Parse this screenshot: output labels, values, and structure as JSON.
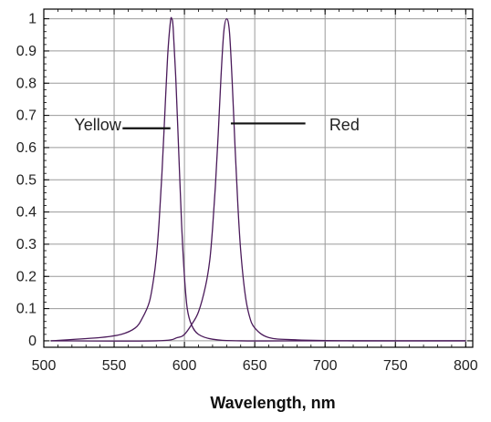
{
  "chart_data": {
    "type": "line",
    "xlabel": "Wavelength, nm",
    "ylabel": "",
    "xlim": [
      500,
      805
    ],
    "ylim": [
      -0.02,
      1.03
    ],
    "x_ticks": [
      500,
      550,
      600,
      650,
      700,
      750,
      800
    ],
    "y_ticks": [
      0,
      0.1,
      0.2,
      0.3,
      0.4,
      0.5,
      0.6,
      0.7,
      0.8,
      0.9,
      1
    ],
    "x_tick_labels": [
      "500",
      "550",
      "600",
      "650",
      "700",
      "750",
      "800"
    ],
    "y_tick_labels": [
      "0",
      "0.1",
      "0.2",
      "0.3",
      "0.4",
      "0.5",
      "0.6",
      "0.7",
      "0.8",
      "0.9",
      "1"
    ],
    "grid": true,
    "line_color": "#4a1a5a",
    "series": [
      {
        "name": "Yellow",
        "x": [
          505,
          540,
          555,
          565,
          570,
          575,
          578,
          580,
          582,
          584,
          586,
          588,
          590,
          591,
          592,
          594,
          596,
          598,
          600,
          602,
          605,
          610,
          620,
          640,
          700,
          800
        ],
        "y": [
          0.0,
          0.01,
          0.02,
          0.04,
          0.07,
          0.12,
          0.19,
          0.26,
          0.37,
          0.52,
          0.7,
          0.88,
          0.99,
          1.0,
          0.97,
          0.8,
          0.58,
          0.36,
          0.2,
          0.1,
          0.05,
          0.02,
          0.005,
          0.0,
          0.0,
          0.0
        ]
      },
      {
        "name": "Red",
        "x": [
          505,
          580,
          595,
          600,
          605,
          610,
          615,
          618,
          620,
          622,
          624,
          626,
          628,
          630,
          632,
          634,
          636,
          638,
          640,
          643,
          646,
          650,
          660,
          680,
          720,
          800
        ],
        "y": [
          0.0,
          0.0,
          0.01,
          0.02,
          0.05,
          0.09,
          0.17,
          0.25,
          0.35,
          0.48,
          0.64,
          0.82,
          0.96,
          1.0,
          0.96,
          0.8,
          0.6,
          0.42,
          0.28,
          0.15,
          0.08,
          0.04,
          0.01,
          0.003,
          0.0,
          0.0
        ]
      }
    ],
    "annotations": [
      {
        "text": "Yellow",
        "x": 555,
        "y": 0.67,
        "line_x": [
          556,
          590
        ],
        "line_y": [
          0.66,
          0.66
        ]
      },
      {
        "text": "Red",
        "x": 703,
        "y": 0.67,
        "line_x": [
          633,
          686
        ],
        "line_y": [
          0.675,
          0.675
        ]
      }
    ]
  }
}
